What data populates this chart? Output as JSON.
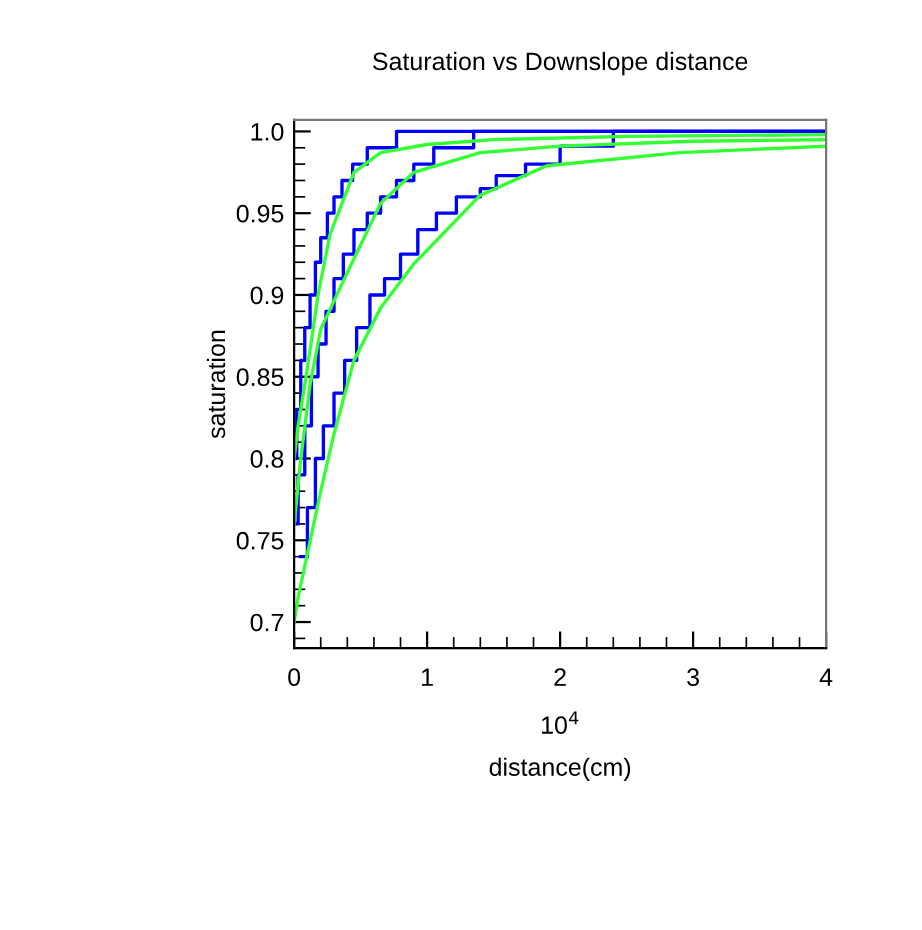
{
  "chart_data": {
    "type": "line",
    "title": "Saturation vs Downslope distance",
    "xlabel": "distance(cm)",
    "ylabel": "saturation",
    "annotations": [
      "10$^{4}$"
    ],
    "xlim": [
      0,
      4
    ],
    "xticks": [
      0,
      1,
      2,
      3,
      4
    ],
    "ylim": [
      0.684,
      1.007
    ],
    "yticks": [
      0.7,
      0.75,
      0.8,
      0.85,
      0.9,
      0.95,
      {
        "value": 1.0,
        "label": "1.0"
      }
    ],
    "grid": false,
    "legend": false,
    "series": [
      {
        "type": "step",
        "color": "#0000ff",
        "x": [
          0,
          0.02,
          0.05,
          0.08,
          0.12,
          0.16,
          0.2,
          0.25,
          0.3,
          0.36,
          0.44,
          0.55,
          0.77,
          4
        ],
        "values": [
          0.8,
          0.83,
          0.86,
          0.88,
          0.9,
          0.92,
          0.935,
          0.95,
          0.96,
          0.97,
          0.98,
          0.99,
          1.0,
          1.0
        ]
      },
      {
        "type": "step",
        "color": "#0000ff",
        "x": [
          0,
          0.03,
          0.08,
          0.13,
          0.18,
          0.24,
          0.3,
          0.37,
          0.45,
          0.55,
          0.65,
          0.77,
          0.9,
          1.05,
          1.35,
          4
        ],
        "values": [
          0.76,
          0.79,
          0.82,
          0.85,
          0.87,
          0.89,
          0.91,
          0.925,
          0.94,
          0.95,
          0.96,
          0.97,
          0.98,
          0.99,
          1.0,
          1.0
        ]
      },
      {
        "type": "step",
        "color": "#0000ff",
        "x": [
          0.05,
          0.1,
          0.16,
          0.22,
          0.3,
          0.38,
          0.47,
          0.57,
          0.68,
          0.8,
          0.93,
          1.07,
          1.22,
          1.4,
          1.52,
          1.74,
          2.0,
          2.4,
          4
        ],
        "values": [
          0.74,
          0.77,
          0.8,
          0.82,
          0.84,
          0.86,
          0.88,
          0.9,
          0.91,
          0.925,
          0.94,
          0.95,
          0.96,
          0.965,
          0.973,
          0.98,
          0.991,
          1.0,
          1.0
        ]
      },
      {
        "color": "#33ff33",
        "x": [
          0,
          0.03,
          0.09,
          0.18,
          0.27,
          0.45,
          0.65,
          1.0,
          1.5,
          2.5,
          4
        ],
        "values": [
          0.8,
          0.82,
          0.85,
          0.9,
          0.937,
          0.975,
          0.987,
          0.992,
          0.995,
          0.997,
          0.998
        ]
      },
      {
        "color": "#33ff33",
        "x": [
          0,
          0.05,
          0.12,
          0.2,
          0.39,
          0.65,
          0.9,
          1.4,
          2.0,
          3.0,
          4
        ],
        "values": [
          0.76,
          0.8,
          0.845,
          0.879,
          0.912,
          0.956,
          0.975,
          0.987,
          0.991,
          0.994,
          0.995
        ]
      },
      {
        "color": "#33ff33",
        "x": [
          0,
          0.03,
          0.09,
          0.2,
          0.3,
          0.45,
          0.65,
          0.9,
          1.4,
          1.9,
          2.9,
          4
        ],
        "values": [
          0.7,
          0.715,
          0.738,
          0.78,
          0.815,
          0.86,
          0.892,
          0.919,
          0.961,
          0.979,
          0.987,
          0.991
        ]
      }
    ]
  }
}
